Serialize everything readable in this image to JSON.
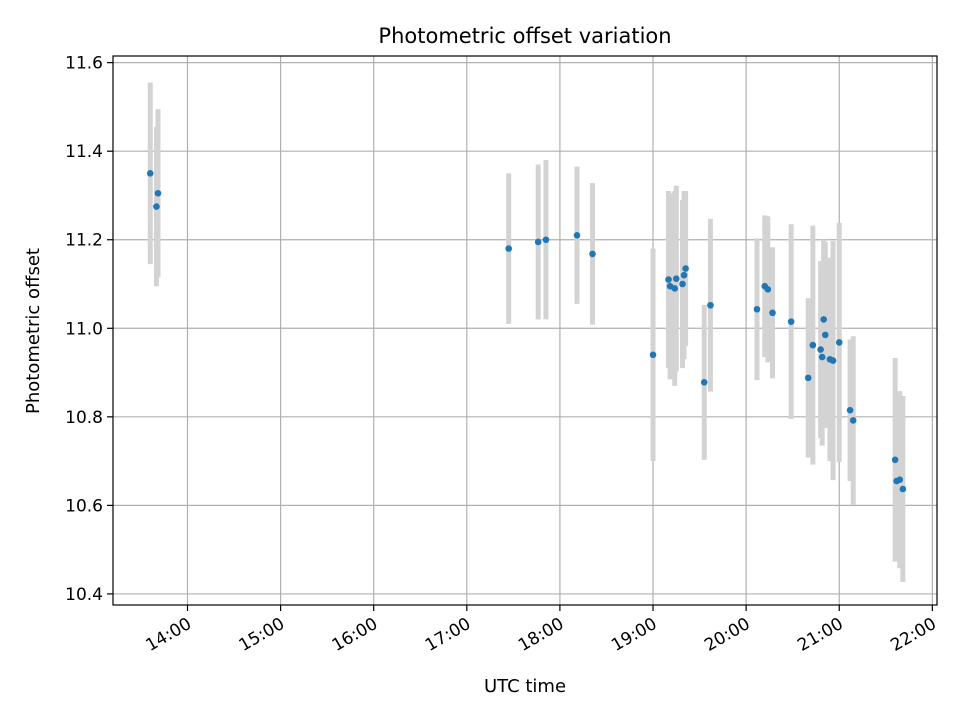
{
  "chart_data": {
    "type": "scatter",
    "title": "Photometric offset variation",
    "xlabel": "UTC time",
    "ylabel": "Photometric offset",
    "x_unit": "hours UTC",
    "xlim": [
      "13:12",
      "22:03"
    ],
    "ylim": [
      10.375,
      11.615
    ],
    "x_ticks": [
      "14:00",
      "15:00",
      "16:00",
      "17:00",
      "18:00",
      "19:00",
      "20:00",
      "21:00",
      "22:00"
    ],
    "y_ticks": [
      "10.4",
      "10.6",
      "10.8",
      "11.0",
      "11.2",
      "11.4",
      "11.6"
    ],
    "y_tick_values": [
      10.4,
      10.6,
      10.8,
      11.0,
      11.2,
      11.4,
      11.6
    ],
    "grid": true,
    "colors": {
      "marker": "#1f77b4",
      "errorbar": "#d3d3d3",
      "grid": "#b0b0b0",
      "axes": "#000000"
    },
    "points": [
      {
        "x": "13:36",
        "y": 11.35,
        "err": 0.205
      },
      {
        "x": "13:40",
        "y": 11.275,
        "err": 0.18
      },
      {
        "x": "13:41",
        "y": 11.305,
        "err": 0.19
      },
      {
        "x": "17:27",
        "y": 11.18,
        "err": 0.17
      },
      {
        "x": "17:46",
        "y": 11.195,
        "err": 0.175
      },
      {
        "x": "17:51",
        "y": 11.2,
        "err": 0.18
      },
      {
        "x": "18:11",
        "y": 11.21,
        "err": 0.155
      },
      {
        "x": "18:21",
        "y": 11.168,
        "err": 0.16
      },
      {
        "x": "19:00",
        "y": 10.94,
        "err": 0.24
      },
      {
        "x": "19:10",
        "y": 11.11,
        "err": 0.2
      },
      {
        "x": "19:11",
        "y": 11.095,
        "err": 0.21
      },
      {
        "x": "19:14",
        "y": 11.09,
        "err": 0.22
      },
      {
        "x": "19:15",
        "y": 11.112,
        "err": 0.21
      },
      {
        "x": "19:19",
        "y": 11.1,
        "err": 0.19
      },
      {
        "x": "19:20",
        "y": 11.12,
        "err": 0.19
      },
      {
        "x": "19:21",
        "y": 11.135,
        "err": 0.175
      },
      {
        "x": "19:33",
        "y": 10.878,
        "err": 0.175
      },
      {
        "x": "19:37",
        "y": 11.052,
        "err": 0.195
      },
      {
        "x": "20:07",
        "y": 11.043,
        "err": 0.16
      },
      {
        "x": "20:12",
        "y": 11.095,
        "err": 0.16
      },
      {
        "x": "20:14",
        "y": 11.088,
        "err": 0.165
      },
      {
        "x": "20:17",
        "y": 11.035,
        "err": 0.148
      },
      {
        "x": "20:29",
        "y": 11.015,
        "err": 0.22
      },
      {
        "x": "20:40",
        "y": 10.888,
        "err": 0.18
      },
      {
        "x": "20:43",
        "y": 10.962,
        "err": 0.27
      },
      {
        "x": "20:48",
        "y": 10.952,
        "err": 0.2
      },
      {
        "x": "20:49",
        "y": 10.935,
        "err": 0.2
      },
      {
        "x": "20:50",
        "y": 11.02,
        "err": 0.18
      },
      {
        "x": "20:51",
        "y": 10.985,
        "err": 0.21
      },
      {
        "x": "20:54",
        "y": 10.93,
        "err": 0.23
      },
      {
        "x": "20:56",
        "y": 10.927,
        "err": 0.27
      },
      {
        "x": "21:00",
        "y": 10.968,
        "err": 0.27
      },
      {
        "x": "21:07",
        "y": 10.815,
        "err": 0.16
      },
      {
        "x": "21:09",
        "y": 10.792,
        "err": 0.19
      },
      {
        "x": "21:36",
        "y": 10.703,
        "err": 0.23
      },
      {
        "x": "21:37",
        "y": 10.655,
        "err": 0.18
      },
      {
        "x": "21:39",
        "y": 10.658,
        "err": 0.2
      },
      {
        "x": "21:41",
        "y": 10.637,
        "err": 0.21
      }
    ]
  }
}
